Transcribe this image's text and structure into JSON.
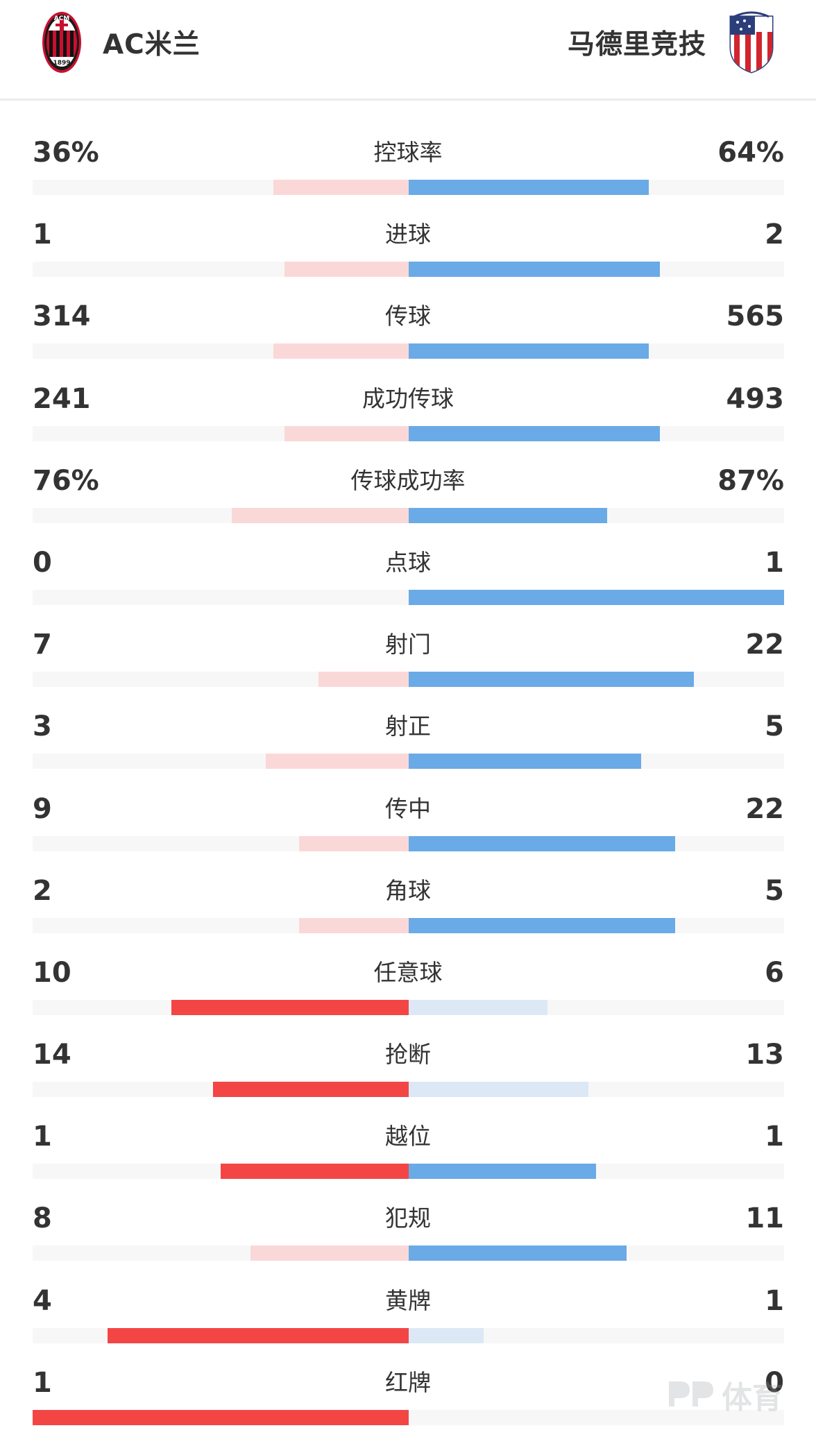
{
  "header": {
    "home_team": "AC米兰",
    "away_team": "马德里竞技",
    "home_crest_text": "ACM 1899",
    "home_crest_icon": "ac-milan-crest-icon",
    "away_crest_icon": "atletico-madrid-crest-icon"
  },
  "colors": {
    "home_strong": "#f44545",
    "home_light": "#fbd8d8",
    "away_strong": "#6aaae6",
    "away_light": "#dce8f5",
    "track": "#f7f7f7"
  },
  "stats": [
    {
      "label": "控球率",
      "home": "36%",
      "away": "64%",
      "home_share": 0.36,
      "away_share": 0.64,
      "leader": "away"
    },
    {
      "label": "进球",
      "home": "1",
      "away": "2",
      "home_share": 0.33,
      "away_share": 0.67,
      "leader": "away"
    },
    {
      "label": "传球",
      "home": "314",
      "away": "565",
      "home_share": 0.36,
      "away_share": 0.64,
      "leader": "away"
    },
    {
      "label": "成功传球",
      "home": "241",
      "away": "493",
      "home_share": 0.33,
      "away_share": 0.67,
      "leader": "away"
    },
    {
      "label": "传球成功率",
      "home": "76%",
      "away": "87%",
      "home_share": 0.47,
      "away_share": 0.53,
      "leader": "away"
    },
    {
      "label": "点球",
      "home": "0",
      "away": "1",
      "home_share": 0.0,
      "away_share": 1.0,
      "leader": "away"
    },
    {
      "label": "射门",
      "home": "7",
      "away": "22",
      "home_share": 0.24,
      "away_share": 0.76,
      "leader": "away"
    },
    {
      "label": "射正",
      "home": "3",
      "away": "5",
      "home_share": 0.38,
      "away_share": 0.62,
      "leader": "away"
    },
    {
      "label": "传中",
      "home": "9",
      "away": "22",
      "home_share": 0.29,
      "away_share": 0.71,
      "leader": "away"
    },
    {
      "label": "角球",
      "home": "2",
      "away": "5",
      "home_share": 0.29,
      "away_share": 0.71,
      "leader": "away"
    },
    {
      "label": "任意球",
      "home": "10",
      "away": "6",
      "home_share": 0.63,
      "away_share": 0.37,
      "leader": "home"
    },
    {
      "label": "抢断",
      "home": "14",
      "away": "13",
      "home_share": 0.52,
      "away_share": 0.48,
      "leader": "home"
    },
    {
      "label": "越位",
      "home": "1",
      "away": "1",
      "home_share": 0.5,
      "away_share": 0.5,
      "leader": "tie"
    },
    {
      "label": "犯规",
      "home": "8",
      "away": "11",
      "home_share": 0.42,
      "away_share": 0.58,
      "leader": "away"
    },
    {
      "label": "黄牌",
      "home": "4",
      "away": "1",
      "home_share": 0.8,
      "away_share": 0.2,
      "leader": "home"
    },
    {
      "label": "红牌",
      "home": "1",
      "away": "0",
      "home_share": 1.0,
      "away_share": 0.0,
      "leader": "home"
    }
  ],
  "watermark": {
    "text": "体育",
    "logo_icon": "pp-sports-logo-icon"
  }
}
